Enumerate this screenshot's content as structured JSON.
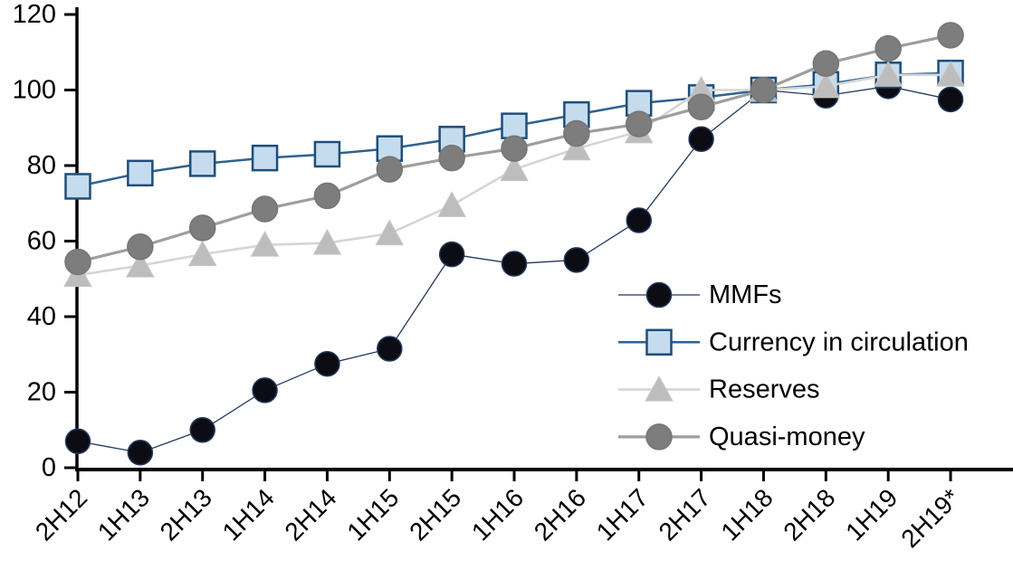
{
  "chart_data": {
    "type": "line",
    "title": "",
    "xlabel": "",
    "ylabel": "",
    "ylim": [
      0,
      120
    ],
    "y_tick_step": 20,
    "grid": false,
    "legend_position": "inside-right",
    "axis_color": "#000000",
    "background_color": "#ffffff",
    "x": [
      "2H12",
      "1H13",
      "2H13",
      "1H14",
      "2H14",
      "1H15",
      "2H15",
      "1H16",
      "2H16",
      "1H17",
      "2H17",
      "1H18",
      "2H18",
      "1H19",
      "2H19*"
    ],
    "y_ticks": [
      "0",
      "20",
      "40",
      "60",
      "80",
      "100",
      "120"
    ],
    "series": [
      {
        "name": "MMFs",
        "marker": "circle",
        "marker_fill": "#0c0c14",
        "marker_stroke": "#24385c",
        "line_color": "#24385c",
        "line_width": 1.3,
        "marker_size": 27,
        "values": [
          7,
          4,
          10,
          20.5,
          27.5,
          31.5,
          56.5,
          54,
          55,
          65.5,
          87,
          100,
          98.5,
          101,
          97.5
        ]
      },
      {
        "name": "Currency in circulation",
        "marker": "square",
        "marker_fill": "#c5dcee",
        "marker_stroke": "#1f4e79",
        "line_color": "#2e628f",
        "line_width": 2.5,
        "marker_size": 27,
        "values": [
          74.5,
          78,
          80.5,
          82,
          83,
          84.5,
          87,
          90.5,
          93.5,
          96.5,
          98,
          100,
          101.5,
          104,
          104.5
        ]
      },
      {
        "name": "Reserves",
        "marker": "triangle",
        "marker_fill": "#bdbdbd",
        "marker_stroke": "#c6c6c6",
        "line_color": "#d5d5d5",
        "line_width": 2.6,
        "marker_size": 29,
        "values": [
          51,
          53.5,
          56.5,
          59,
          59.5,
          62,
          69.5,
          79,
          84.5,
          89,
          100,
          100,
          101,
          104,
          104
        ]
      },
      {
        "name": "Quasi-money",
        "marker": "circle",
        "marker_fill": "#7d7d7d",
        "marker_stroke": "#757575",
        "line_color": "#9e9e9e",
        "line_width": 3.2,
        "marker_size": 28,
        "values": [
          54.5,
          58.5,
          63.5,
          68.5,
          72,
          79,
          82,
          84.5,
          88.5,
          91,
          95.5,
          100,
          107,
          111,
          114.5
        ]
      }
    ]
  }
}
